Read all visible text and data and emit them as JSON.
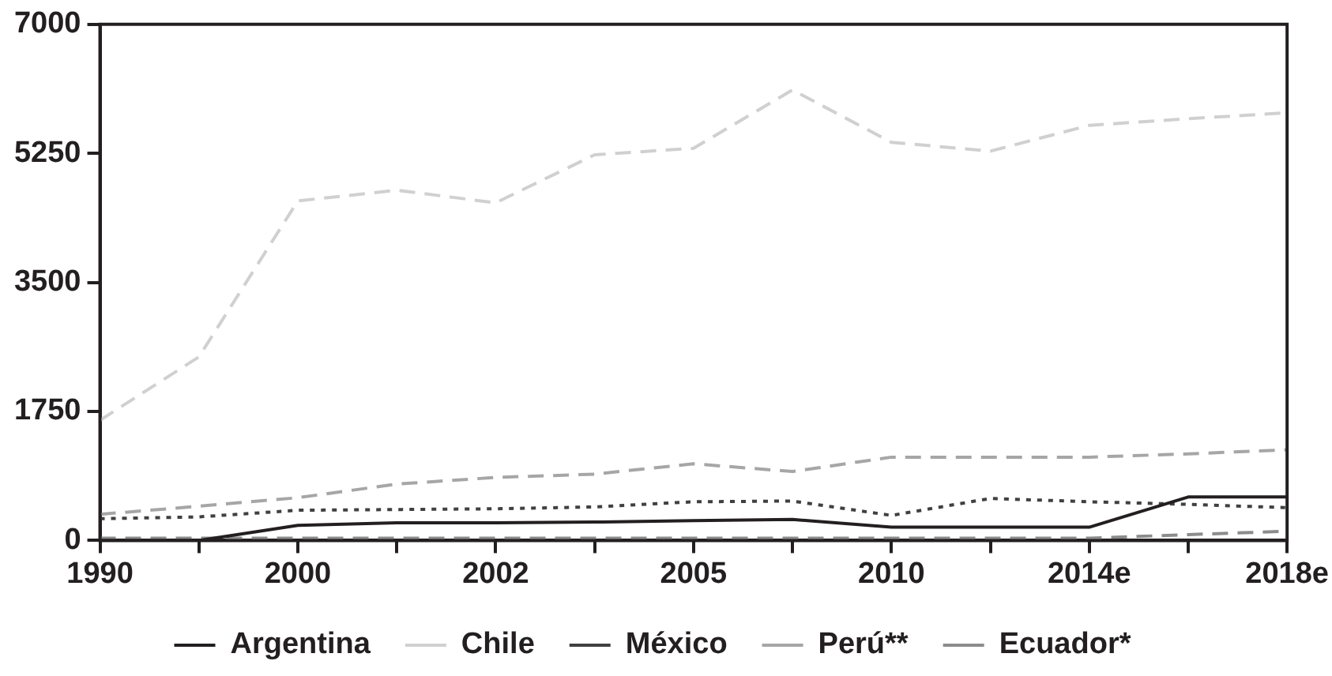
{
  "chart_data": {
    "type": "line",
    "categories": [
      "1990",
      null,
      "2000",
      null,
      "2002",
      null,
      "2005",
      null,
      "2010",
      null,
      "2014e",
      null,
      "2018e"
    ],
    "series": [
      {
        "name": "Argentina",
        "color": "#231f20",
        "line_style": "solid",
        "values": [
          0,
          0,
          205,
          240,
          240,
          250,
          270,
          285,
          180,
          180,
          180,
          590,
          590
        ]
      },
      {
        "name": "Chile",
        "color": "#d0d0d0",
        "line_style": "dashed",
        "values": [
          1630,
          2490,
          4605,
          4750,
          4580,
          5230,
          5320,
          6110,
          5400,
          5280,
          5630,
          5720,
          5800
        ]
      },
      {
        "name": "México",
        "color": "#404040",
        "line_style": "dotted",
        "values": [
          295,
          320,
          410,
          420,
          430,
          455,
          525,
          535,
          340,
          570,
          525,
          490,
          445
        ]
      },
      {
        "name": "Perú**",
        "color": "#a6a6a6",
        "line_style": "dashed",
        "values": [
          355,
          465,
          580,
          765,
          855,
          900,
          1040,
          935,
          1130,
          1130,
          1130,
          1175,
          1230
        ]
      },
      {
        "name": "Ecuador*",
        "color": "#8c8c8c",
        "line_style": "dashed",
        "values": [
          30,
          30,
          30,
          30,
          30,
          30,
          30,
          30,
          30,
          30,
          30,
          80,
          125
        ]
      }
    ],
    "ylim": [
      0,
      7000
    ],
    "yticks": [
      0,
      1750,
      3500,
      5250,
      7000
    ],
    "grid": false,
    "legend": "bottom",
    "marker": "none"
  }
}
